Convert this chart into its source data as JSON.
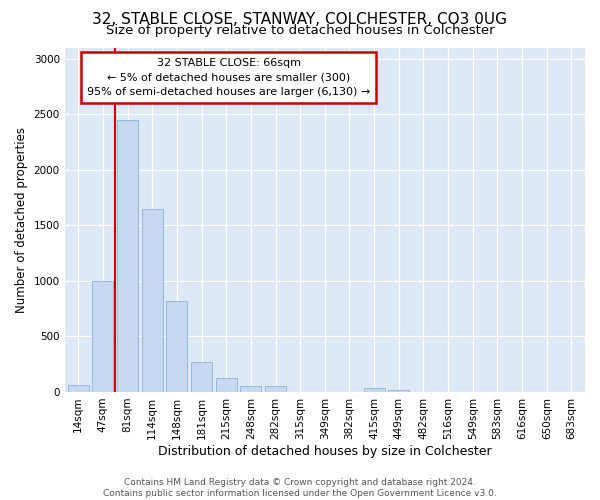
{
  "title": "32, STABLE CLOSE, STANWAY, COLCHESTER, CO3 0UG",
  "subtitle": "Size of property relative to detached houses in Colchester",
  "xlabel": "Distribution of detached houses by size in Colchester",
  "ylabel": "Number of detached properties",
  "categories": [
    "14sqm",
    "47sqm",
    "81sqm",
    "114sqm",
    "148sqm",
    "181sqm",
    "215sqm",
    "248sqm",
    "282sqm",
    "315sqm",
    "349sqm",
    "382sqm",
    "415sqm",
    "449sqm",
    "482sqm",
    "516sqm",
    "549sqm",
    "583sqm",
    "616sqm",
    "650sqm",
    "683sqm"
  ],
  "values": [
    60,
    1000,
    2450,
    1650,
    820,
    270,
    130,
    55,
    50,
    0,
    0,
    0,
    40,
    20,
    0,
    0,
    0,
    0,
    0,
    0,
    0
  ],
  "bar_color": "#c5d8f0",
  "bar_edge_color": "#8ab4d8",
  "vline_x_pos": 1.5,
  "vline_color": "#cc0000",
  "annotation_text": "32 STABLE CLOSE: 66sqm\n← 5% of detached houses are smaller (300)\n95% of semi-detached houses are larger (6,130) →",
  "annotation_box_edge_color": "#cc0000",
  "annotation_box_bg": "#ffffff",
  "ylim_max": 3100,
  "yticks": [
    0,
    500,
    1000,
    1500,
    2000,
    2500,
    3000
  ],
  "footer_line1": "Contains HM Land Registry data © Crown copyright and database right 2024.",
  "footer_line2": "Contains public sector information licensed under the Open Government Licence v3.0.",
  "fig_bg_color": "#ffffff",
  "plot_bg_color": "#dce8f5",
  "grid_color": "#ffffff",
  "title_fontsize": 11,
  "subtitle_fontsize": 9.5,
  "ylabel_fontsize": 8.5,
  "xlabel_fontsize": 9,
  "tick_fontsize": 7.5,
  "annotation_fontsize": 8,
  "footer_fontsize": 6.5
}
